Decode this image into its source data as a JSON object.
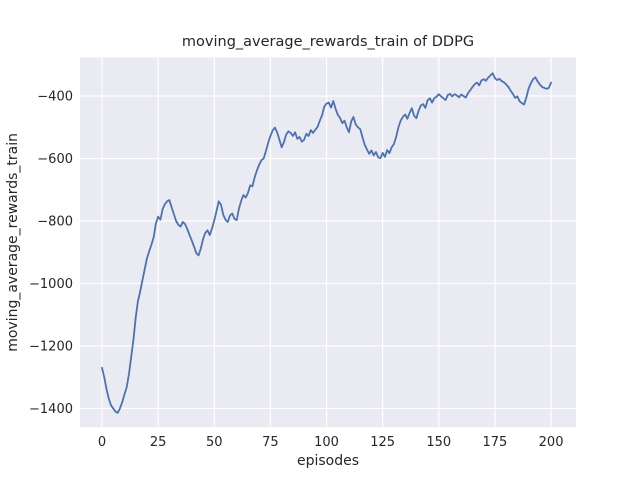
{
  "figure": {
    "title": "moving_average_rewards_train of DDPG",
    "xlabel": "episodes",
    "ylabel": "moving_average_rewards_train"
  },
  "colors": {
    "line": "#4c72b0",
    "axes_background": "#eaeaf2",
    "gridline": "#ffffff",
    "figure_background": "#ffffff",
    "text": "#262626"
  },
  "chart_data": {
    "type": "line",
    "title": "moving_average_rewards_train of DDPG",
    "xlabel": "episodes",
    "ylabel": "moving_average_rewards_train",
    "x_ticks": [
      0,
      25,
      50,
      75,
      100,
      125,
      150,
      175,
      200
    ],
    "y_ticks": [
      -400,
      -600,
      -800,
      -1000,
      -1200,
      -1400
    ],
    "xlim": [
      -9.8,
      211.1
    ],
    "ylim": [
      -1460,
      -277
    ],
    "grid": true,
    "legend_position": "none",
    "series": [
      {
        "name": "moving_average_rewards_train",
        "x_start": 0,
        "x_step": 1,
        "y": [
          -1270,
          -1300,
          -1338,
          -1368,
          -1390,
          -1400,
          -1410,
          -1414,
          -1400,
          -1380,
          -1355,
          -1332,
          -1290,
          -1235,
          -1180,
          -1110,
          -1056,
          -1026,
          -990,
          -955,
          -920,
          -897,
          -876,
          -852,
          -808,
          -786,
          -796,
          -762,
          -746,
          -737,
          -733,
          -756,
          -778,
          -800,
          -812,
          -818,
          -803,
          -810,
          -826,
          -845,
          -863,
          -882,
          -903,
          -910,
          -888,
          -858,
          -838,
          -830,
          -845,
          -824,
          -798,
          -768,
          -737,
          -748,
          -780,
          -796,
          -803,
          -782,
          -776,
          -793,
          -797,
          -760,
          -735,
          -717,
          -725,
          -710,
          -686,
          -689,
          -660,
          -638,
          -620,
          -605,
          -600,
          -576,
          -550,
          -528,
          -510,
          -501,
          -516,
          -540,
          -564,
          -548,
          -524,
          -513,
          -518,
          -528,
          -516,
          -537,
          -531,
          -546,
          -540,
          -521,
          -528,
          -509,
          -518,
          -508,
          -499,
          -479,
          -462,
          -434,
          -424,
          -421,
          -437,
          -416,
          -440,
          -460,
          -470,
          -487,
          -479,
          -500,
          -516,
          -481,
          -467,
          -491,
          -500,
          -506,
          -532,
          -556,
          -571,
          -585,
          -574,
          -590,
          -579,
          -596,
          -599,
          -582,
          -595,
          -573,
          -583,
          -564,
          -554,
          -531,
          -500,
          -479,
          -467,
          -459,
          -473,
          -454,
          -439,
          -463,
          -471,
          -447,
          -430,
          -426,
          -438,
          -414,
          -407,
          -421,
          -407,
          -402,
          -394,
          -401,
          -407,
          -413,
          -397,
          -393,
          -401,
          -394,
          -398,
          -404,
          -395,
          -400,
          -405,
          -391,
          -381,
          -371,
          -362,
          -357,
          -366,
          -350,
          -346,
          -351,
          -341,
          -334,
          -327,
          -343,
          -349,
          -345,
          -352,
          -356,
          -363,
          -371,
          -383,
          -393,
          -406,
          -401,
          -417,
          -423,
          -427,
          -404,
          -376,
          -359,
          -346,
          -340,
          -353,
          -363,
          -371,
          -374,
          -377,
          -374,
          -357
        ]
      }
    ]
  }
}
